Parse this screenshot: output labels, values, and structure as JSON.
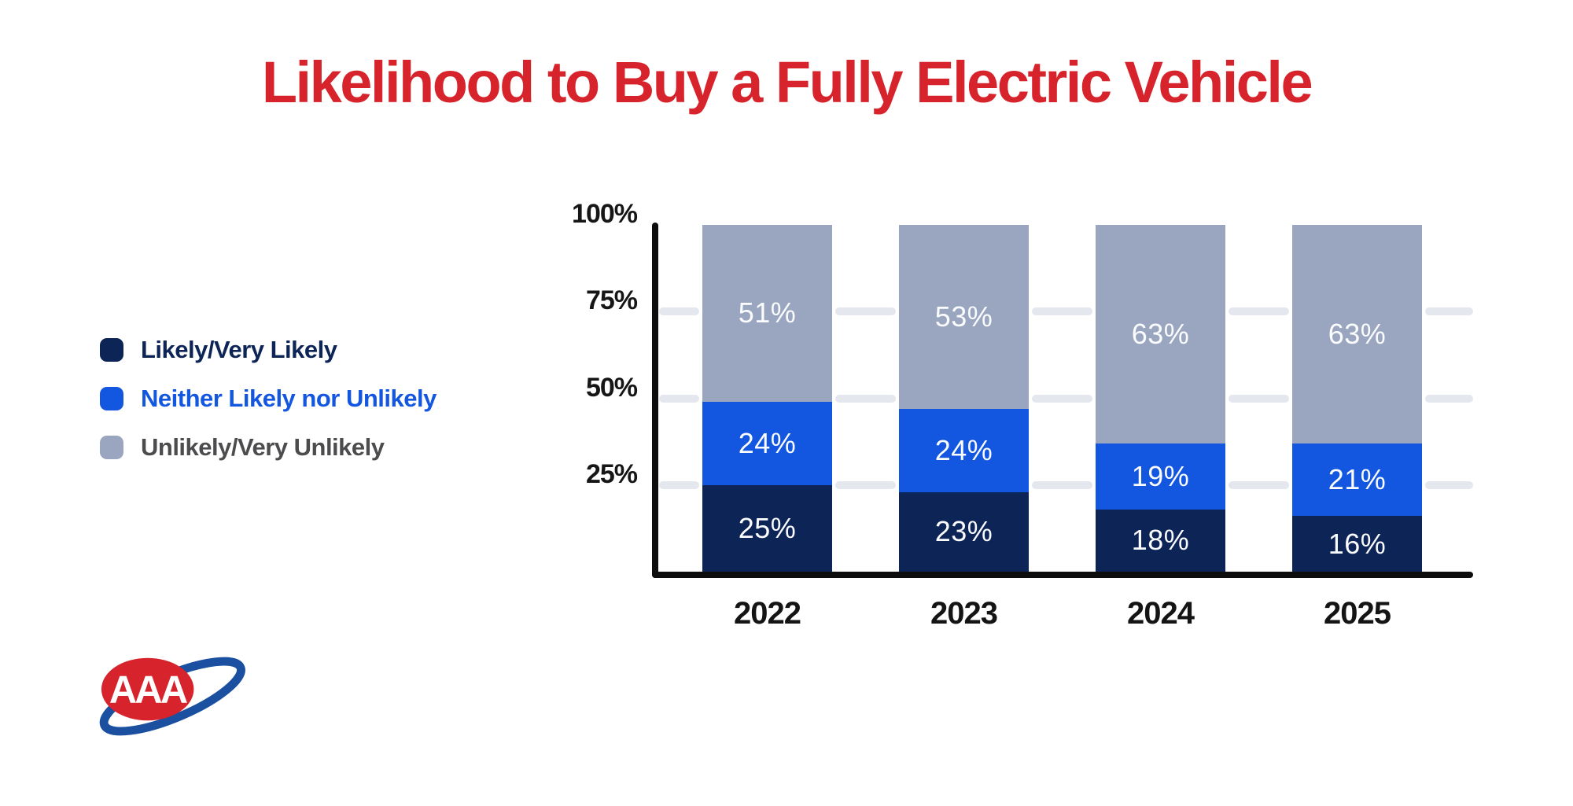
{
  "title": {
    "text": "Likelihood to Buy a Fully Electric Vehicle",
    "color": "#d7232b"
  },
  "legend": {
    "items": [
      {
        "label": "Likely/Very Likely",
        "swatch_color": "#0d2456",
        "text_color": "#0d2456"
      },
      {
        "label": "Neither Likely nor Unlikely",
        "swatch_color": "#1356e0",
        "text_color": "#1356e0"
      },
      {
        "label": "Unlikely/Very Unlikely",
        "swatch_color": "#9aa6c0",
        "text_color": "#4c4c4e"
      }
    ]
  },
  "chart_data": {
    "type": "bar",
    "stacked": true,
    "title": "Likelihood to Buy a Fully Electric Vehicle",
    "categories": [
      "2022",
      "2023",
      "2024",
      "2025"
    ],
    "series": [
      {
        "name": "Likely/Very Likely",
        "color": "#0d2456",
        "values": [
          25,
          23,
          18,
          16
        ]
      },
      {
        "name": "Neither Likely nor Unlikely",
        "color": "#1356e0",
        "values": [
          24,
          24,
          19,
          21
        ]
      },
      {
        "name": "Unlikely/Very Unlikely",
        "color": "#9aa6c0",
        "values": [
          51,
          53,
          63,
          63
        ]
      }
    ],
    "value_suffix": "%",
    "data_label_color": "#fbfcfe",
    "ylim": [
      0,
      100
    ],
    "y_ticks": [
      {
        "label": "100%",
        "value": 100
      },
      {
        "label": "75%",
        "value": 75
      },
      {
        "label": "50%",
        "value": 50
      },
      {
        "label": "25%",
        "value": 25
      }
    ],
    "gridline_values": [
      75,
      50,
      25
    ],
    "gridline_color": "#e4e7ee",
    "grid": true,
    "legend_position": "left",
    "xlabel": "",
    "ylabel": ""
  },
  "logo": {
    "name": "AAA",
    "letters": "AAA",
    "red": "#d7232b",
    "blue": "#1b4f9f"
  }
}
